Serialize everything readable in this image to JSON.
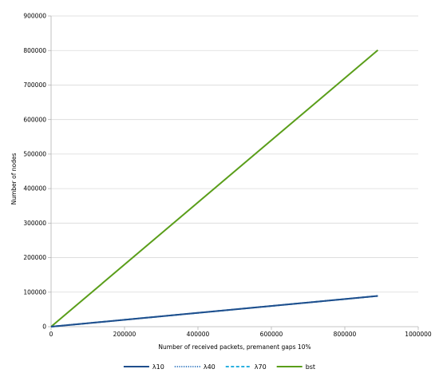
{
  "chart_data": {
    "type": "line",
    "title": "",
    "xlabel": "Number of received packets, premanent gaps 10%",
    "ylabel": "Number of nodes",
    "xlim": [
      0,
      1000000
    ],
    "ylim": [
      0,
      900000
    ],
    "x_ticks": [
      0,
      200000,
      400000,
      600000,
      800000,
      1000000
    ],
    "y_ticks": [
      0,
      100000,
      200000,
      300000,
      400000,
      500000,
      600000,
      700000,
      800000,
      900000
    ],
    "x_tick_labels": [
      "0",
      "200000",
      "400000",
      "600000",
      "800000",
      "1000000"
    ],
    "y_tick_labels": [
      "0",
      "100000",
      "200000",
      "300000",
      "400000",
      "500000",
      "600000",
      "700000",
      "800000",
      "900000"
    ],
    "grid": "horizontal",
    "legend_position": "bottom",
    "series": [
      {
        "name": "λ10",
        "color": "#1f4e8c",
        "style": "solid",
        "x": [
          0,
          890000
        ],
        "y": [
          0,
          89000
        ]
      },
      {
        "name": "λ40",
        "color": "#3d7fc4",
        "style": "dotted",
        "x": [
          0,
          890000
        ],
        "y": [
          0,
          89000
        ]
      },
      {
        "name": "λ70",
        "color": "#2ab0e0",
        "style": "dashed",
        "x": [
          0,
          890000
        ],
        "y": [
          0,
          89000
        ]
      },
      {
        "name": "bst",
        "color": "#5a9e1a",
        "style": "solid",
        "x": [
          0,
          890000
        ],
        "y": [
          0,
          801000
        ]
      }
    ]
  }
}
